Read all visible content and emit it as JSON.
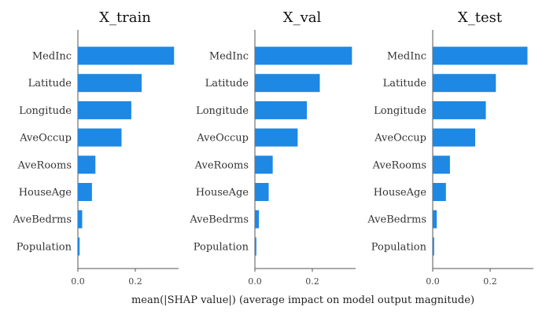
{
  "chart_data": {
    "type": "bar",
    "orientation": "horizontal",
    "bar_color": "#1e88e5",
    "xlabel": "mean(|SHAP value|) (average impact on model output magnitude)",
    "categories": [
      "MedInc",
      "Latitude",
      "Longitude",
      "AveOccup",
      "AveRooms",
      "HouseAge",
      "AveBedrms",
      "Population"
    ],
    "xlim": [
      0,
      0.35
    ],
    "xticks": [
      {
        "value": 0.0,
        "label": "0.0"
      },
      {
        "value": 0.2,
        "label": "0.2"
      }
    ],
    "panels": [
      {
        "title": "X_train",
        "values": [
          0.335,
          0.222,
          0.186,
          0.152,
          0.061,
          0.049,
          0.015,
          0.006
        ]
      },
      {
        "title": "X_val",
        "values": [
          0.338,
          0.226,
          0.181,
          0.149,
          0.062,
          0.048,
          0.014,
          0.005
        ]
      },
      {
        "title": "X_test",
        "values": [
          0.33,
          0.22,
          0.185,
          0.148,
          0.06,
          0.046,
          0.014,
          0.005
        ]
      }
    ]
  }
}
